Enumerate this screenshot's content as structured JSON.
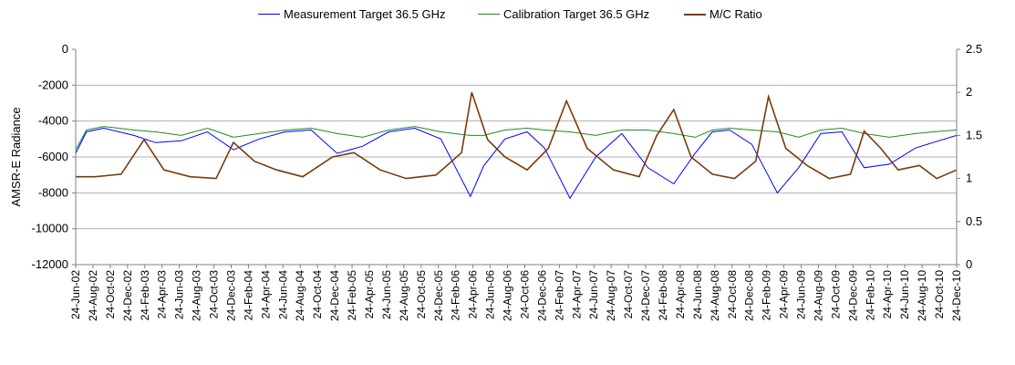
{
  "chart_data": {
    "type": "line",
    "xlabel": "",
    "ylabel": "AMSR-E Radiance",
    "ylim": [
      -12000,
      0
    ],
    "y2lim": [
      0,
      2.5
    ],
    "yticks": [
      0,
      -2000,
      -4000,
      -6000,
      -8000,
      -10000,
      -12000
    ],
    "y2ticks": [
      0,
      0.5,
      1,
      1.5,
      2,
      2.5
    ],
    "x_range": [
      "2002-06-24",
      "2010-12-24"
    ],
    "x_tick_labels": [
      "24-Jun-02",
      "24-Aug-02",
      "24-Oct-02",
      "24-Dec-02",
      "24-Feb-03",
      "24-Apr-03",
      "24-Jun-03",
      "24-Aug-03",
      "24-Oct-03",
      "24-Dec-03",
      "24-Feb-04",
      "24-Apr-04",
      "24-Jun-04",
      "24-Aug-04",
      "24-Oct-04",
      "24-Dec-04",
      "24-Feb-05",
      "24-Apr-05",
      "24-Jun-05",
      "24-Aug-05",
      "24-Oct-05",
      "24-Dec-05",
      "24-Feb-06",
      "24-Apr-06",
      "24-Jun-06",
      "24-Aug-06",
      "24-Oct-06",
      "24-Dec-06",
      "24-Feb-07",
      "24-Apr-07",
      "24-Jun-07",
      "24-Aug-07",
      "24-Oct-07",
      "24-Dec-07",
      "24-Feb-08",
      "24-Apr-08",
      "24-Jun-08",
      "24-Aug-08",
      "24-Oct-08",
      "24-Dec-08",
      "24-Feb-09",
      "24-Apr-09",
      "24-Jun-09",
      "24-Aug-09",
      "24-Oct-09",
      "24-Dec-09",
      "24-Feb-10",
      "24-Apr-10",
      "24-Jun-10",
      "24-Aug-10",
      "24-Oct-10",
      "24-Dec-10"
    ],
    "grid": "horizontal",
    "legend_position": "top",
    "series": [
      {
        "name": "Measurement Target 36.5 GHz",
        "color": "#0000ff",
        "axis": "left",
        "x": [
          "2002-06-24",
          "2002-08-01",
          "2002-10-01",
          "2003-01-15",
          "2003-04-01",
          "2003-07-01",
          "2003-10-01",
          "2004-01-01",
          "2004-04-01",
          "2004-07-01",
          "2004-10-01",
          "2005-01-01",
          "2005-04-01",
          "2005-07-01",
          "2005-10-01",
          "2006-01-01",
          "2006-04-15",
          "2006-06-01",
          "2006-08-15",
          "2006-11-01",
          "2007-01-01",
          "2007-04-01",
          "2007-07-01",
          "2007-10-01",
          "2008-01-01",
          "2008-04-01",
          "2008-06-15",
          "2008-08-15",
          "2008-10-15",
          "2009-01-01",
          "2009-04-01",
          "2009-06-15",
          "2009-09-01",
          "2009-11-15",
          "2010-02-01",
          "2010-05-01",
          "2010-08-01",
          "2010-10-01",
          "2010-12-24"
        ],
        "y": [
          -5800,
          -4600,
          -4400,
          -4800,
          -5200,
          -5100,
          -4600,
          -5600,
          -5000,
          -4600,
          -4500,
          -5800,
          -5400,
          -4600,
          -4400,
          -5000,
          -8200,
          -6500,
          -5000,
          -4600,
          -5500,
          -8300,
          -6000,
          -4700,
          -6600,
          -7500,
          -5800,
          -4600,
          -4500,
          -5300,
          -8000,
          -6600,
          -4700,
          -4600,
          -6600,
          -6400,
          -5500,
          -5200,
          -4800
        ]
      },
      {
        "name": "Calibration Target 36.5 GHz",
        "color": "#1e8c1e",
        "axis": "left",
        "x": [
          "2002-06-24",
          "2002-08-01",
          "2002-10-01",
          "2003-01-15",
          "2003-04-01",
          "2003-07-01",
          "2003-10-01",
          "2004-01-01",
          "2004-04-01",
          "2004-07-01",
          "2004-10-01",
          "2005-01-01",
          "2005-04-01",
          "2005-07-01",
          "2005-10-01",
          "2006-01-01",
          "2006-04-15",
          "2006-06-01",
          "2006-08-15",
          "2006-11-01",
          "2007-01-01",
          "2007-04-01",
          "2007-07-01",
          "2007-10-01",
          "2008-01-01",
          "2008-04-01",
          "2008-06-15",
          "2008-08-15",
          "2008-10-15",
          "2009-01-01",
          "2009-04-01",
          "2009-06-15",
          "2009-09-01",
          "2009-11-15",
          "2010-02-01",
          "2010-05-01",
          "2010-08-01",
          "2010-10-01",
          "2010-12-24"
        ],
        "y": [
          -5600,
          -4500,
          -4300,
          -4500,
          -4600,
          -4800,
          -4400,
          -4900,
          -4700,
          -4500,
          -4400,
          -4700,
          -4900,
          -4500,
          -4300,
          -4600,
          -4800,
          -4800,
          -4500,
          -4400,
          -4500,
          -4600,
          -4800,
          -4500,
          -4500,
          -4700,
          -4900,
          -4500,
          -4400,
          -4500,
          -4600,
          -4900,
          -4500,
          -4400,
          -4700,
          -4900,
          -4700,
          -4600,
          -4500
        ]
      },
      {
        "name": "M/C Ratio",
        "color": "#7a3a0a",
        "axis": "right",
        "x": [
          "2002-06-24",
          "2002-09-01",
          "2002-12-01",
          "2003-02-20",
          "2003-05-01",
          "2003-08-01",
          "2003-11-01",
          "2004-01-01",
          "2004-03-15",
          "2004-06-01",
          "2004-09-01",
          "2004-12-15",
          "2005-03-01",
          "2005-06-01",
          "2005-09-01",
          "2005-12-15",
          "2006-03-15",
          "2006-04-20",
          "2006-06-15",
          "2006-08-15",
          "2006-11-01",
          "2007-01-15",
          "2007-03-20",
          "2007-06-01",
          "2007-09-01",
          "2007-12-01",
          "2008-02-01",
          "2008-04-01",
          "2008-06-01",
          "2008-08-15",
          "2008-11-01",
          "2009-01-15",
          "2009-03-01",
          "2009-05-01",
          "2009-07-15",
          "2009-10-01",
          "2009-12-15",
          "2010-02-01",
          "2010-04-01",
          "2010-06-01",
          "2010-08-15",
          "2010-10-15",
          "2010-12-24"
        ],
        "y": [
          1.02,
          1.02,
          1.05,
          1.45,
          1.1,
          1.02,
          1.0,
          1.42,
          1.2,
          1.1,
          1.02,
          1.25,
          1.3,
          1.1,
          1.0,
          1.04,
          1.3,
          2.0,
          1.45,
          1.25,
          1.1,
          1.35,
          1.9,
          1.35,
          1.1,
          1.02,
          1.5,
          1.8,
          1.25,
          1.05,
          1.0,
          1.2,
          1.95,
          1.35,
          1.15,
          1.0,
          1.05,
          1.55,
          1.35,
          1.1,
          1.15,
          1.0,
          1.1
        ]
      }
    ]
  }
}
